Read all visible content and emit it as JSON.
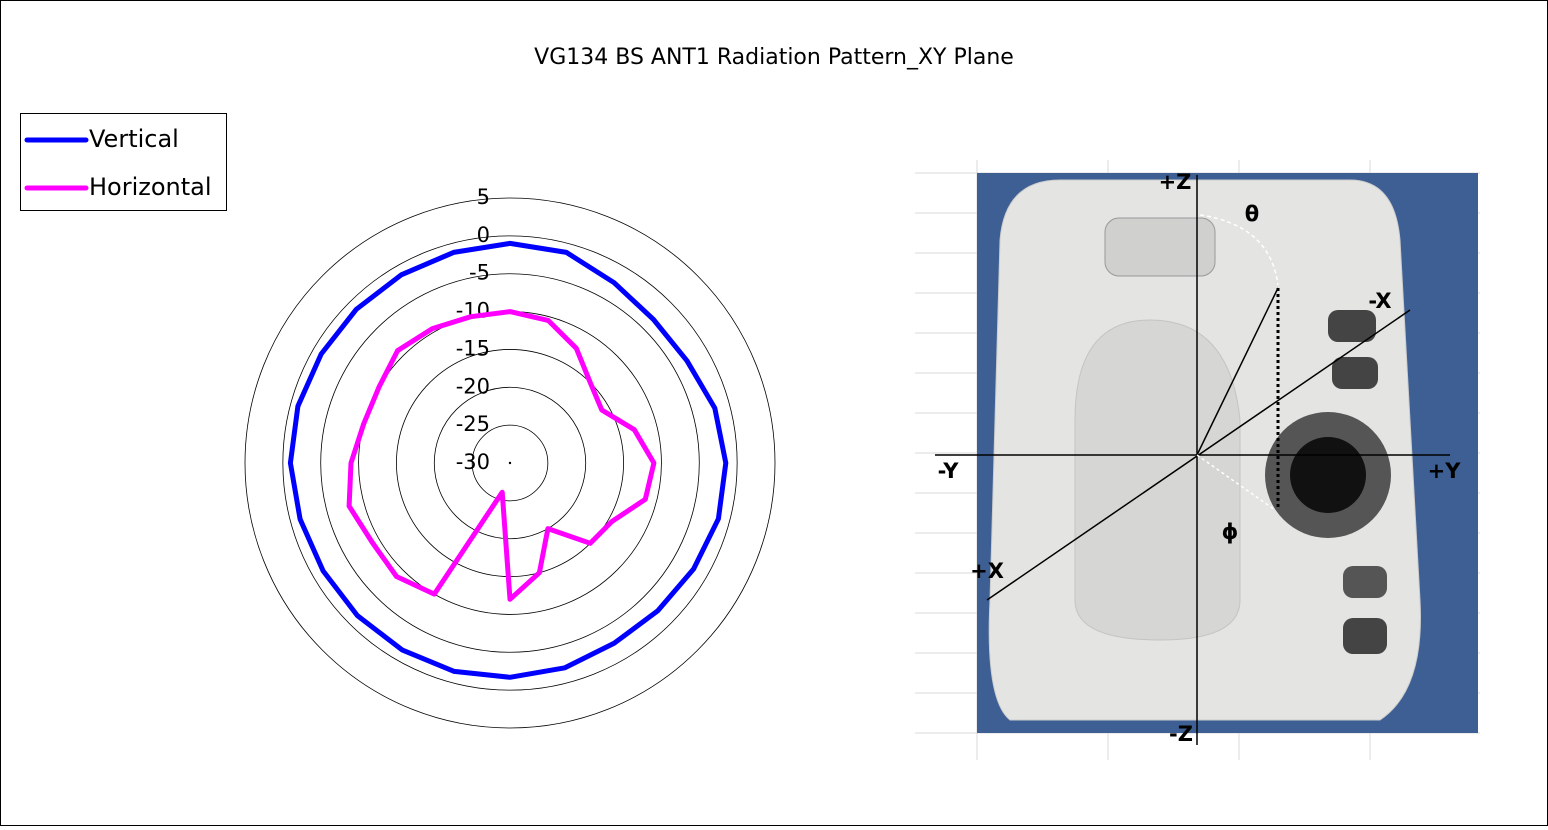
{
  "chart_data": {
    "type": "polar-line",
    "title": "VG134 BS ANT1 Radiation Pattern_XY Plane",
    "theta": [
      0,
      15,
      30,
      45,
      60,
      75,
      90,
      105,
      120,
      135,
      150,
      165,
      180,
      195,
      210,
      225,
      240,
      255,
      270,
      285,
      300,
      315,
      330,
      345
    ],
    "series": [
      {
        "name": "Vertical",
        "color": "#0000ff",
        "values": [
          -1,
          -1.2,
          -2.5,
          -3.2,
          -3,
          -2,
          -1.5,
          -1.5,
          -2,
          -2.4,
          -2.5,
          -2,
          -1.7,
          -1.5,
          -1.5,
          -1.5,
          -1.5,
          -1.3,
          -1,
          -1,
          -1.2,
          -1.3,
          -1.3,
          -1.2
        ]
      },
      {
        "name": "Horizontal",
        "color": "#ff00ff",
        "values": [
          -10,
          -10.5,
          -12.5,
          -15,
          -16,
          -13,
          -11,
          -11.5,
          -14.5,
          -15,
          -20,
          -15,
          -12,
          -26,
          -10,
          -8.8,
          -9,
          -8,
          -9,
          -10,
          -10,
          -9,
          -9.5,
          -10
        ]
      }
    ],
    "rlim": [
      -30,
      5
    ],
    "rticks": [
      5,
      0,
      -5,
      -10,
      -15,
      -20,
      -25,
      -30
    ],
    "grid": true,
    "legend": "top-left",
    "annotations": [
      "+Z",
      "θ",
      "-X",
      "-Y",
      "+Y",
      "ϕ",
      "+X",
      "-Z"
    ]
  }
}
